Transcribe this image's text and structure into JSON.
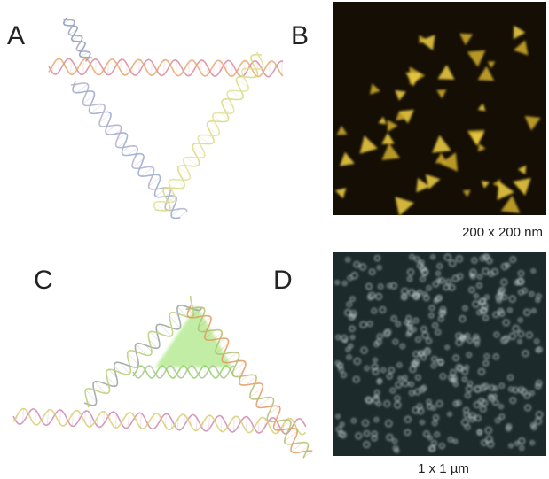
{
  "panels": [
    {
      "label": "A"
    },
    {
      "label": "B",
      "caption": "200 x 200 nm"
    },
    {
      "label": "C"
    },
    {
      "label": "D",
      "caption": "1 x 1 µm"
    }
  ]
}
